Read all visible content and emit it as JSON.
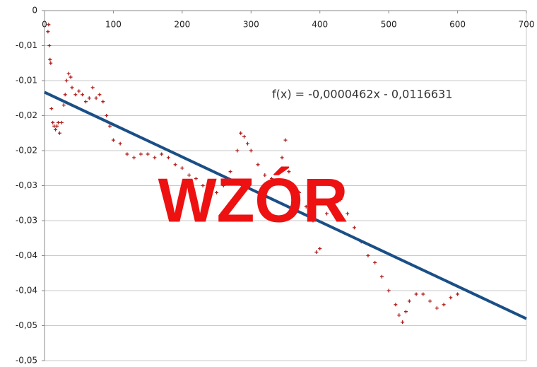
{
  "chart_data": {
    "type": "scatter",
    "color": "#b0201e",
    "x": [
      5,
      6,
      7,
      8,
      9,
      10,
      12,
      14,
      16,
      18,
      20,
      22,
      25,
      28,
      30,
      32,
      35,
      38,
      40,
      45,
      50,
      55,
      60,
      65,
      70,
      75,
      80,
      85,
      90,
      95,
      100,
      110,
      120,
      130,
      140,
      150,
      160,
      170,
      180,
      190,
      200,
      210,
      220,
      230,
      240,
      250,
      260,
      270,
      280,
      285,
      290,
      295,
      300,
      310,
      320,
      330,
      340,
      345,
      350,
      355,
      360,
      370,
      380,
      390,
      395,
      400,
      410,
      420,
      430,
      440,
      450,
      460,
      470,
      480,
      490,
      500,
      510,
      515,
      520,
      525,
      530,
      540,
      550,
      560,
      570,
      580,
      590,
      600
    ],
    "values": [
      -0.003,
      -0.002,
      -0.005,
      -0.007,
      -0.0075,
      -0.014,
      -0.016,
      -0.0165,
      -0.017,
      -0.0165,
      -0.016,
      -0.0175,
      -0.016,
      -0.0135,
      -0.012,
      -0.01,
      -0.009,
      -0.0095,
      -0.011,
      -0.012,
      -0.0115,
      -0.012,
      -0.013,
      -0.0125,
      -0.011,
      -0.0125,
      -0.012,
      -0.013,
      -0.015,
      -0.0165,
      -0.0185,
      -0.019,
      -0.0205,
      -0.021,
      -0.0205,
      -0.0205,
      -0.021,
      -0.0205,
      -0.021,
      -0.022,
      -0.0225,
      -0.0235,
      -0.024,
      -0.025,
      -0.0255,
      -0.026,
      -0.025,
      -0.023,
      -0.02,
      -0.0175,
      -0.018,
      -0.019,
      -0.02,
      -0.022,
      -0.0235,
      -0.024,
      -0.023,
      -0.021,
      -0.0185,
      -0.023,
      -0.025,
      -0.026,
      -0.028,
      -0.03,
      -0.0345,
      -0.034,
      -0.029,
      -0.028,
      -0.027,
      -0.029,
      -0.031,
      -0.033,
      -0.035,
      -0.036,
      -0.038,
      -0.04,
      -0.042,
      -0.0435,
      -0.0445,
      -0.043,
      -0.0415,
      -0.0405,
      -0.0405,
      -0.0415,
      -0.0425,
      -0.042,
      -0.041,
      -0.0405
    ],
    "xlim": [
      0,
      700
    ],
    "xticks": [
      0,
      100,
      200,
      300,
      400,
      500,
      600,
      700
    ],
    "ylim": [
      -0.05,
      0
    ],
    "yticks": [
      {
        "value": 0,
        "label": "0"
      },
      {
        "value": -0.005,
        "label": "-0,01"
      },
      {
        "value": -0.01,
        "label": "-0,01"
      },
      {
        "value": -0.015,
        "label": "-0,02"
      },
      {
        "value": -0.02,
        "label": "-0,02"
      },
      {
        "value": -0.025,
        "label": "-0,03"
      },
      {
        "value": -0.03,
        "label": "-0,03"
      },
      {
        "value": -0.035,
        "label": "-0,04"
      },
      {
        "value": -0.04,
        "label": "-0,04"
      },
      {
        "value": -0.045,
        "label": "-0,05"
      },
      {
        "value": -0.05,
        "label": "-0,05"
      }
    ],
    "grid": true,
    "trendline": {
      "label": "f(x) = -0,0000462x - 0,0116631",
      "slope": -4.62e-05,
      "intercept": -0.0116631,
      "color": "#1a4f86"
    },
    "watermark": "WZÓR"
  }
}
